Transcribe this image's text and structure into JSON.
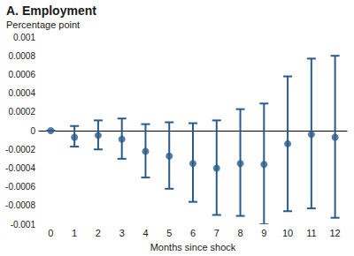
{
  "chart_data": {
    "type": "scatter",
    "title": "A. Employment",
    "y_label": "Percentage point",
    "x_label": "Months since shock",
    "categories": [
      "0",
      "1",
      "2",
      "3",
      "4",
      "5",
      "6",
      "7",
      "8",
      "9",
      "10",
      "11",
      "12"
    ],
    "values": [
      0,
      -7e-05,
      -5e-05,
      -9e-05,
      -0.00022,
      -0.00027,
      -0.00035,
      -0.0004,
      -0.00035,
      -0.00036,
      -0.00014,
      -4e-05,
      -7e-05
    ],
    "error_low": [
      0,
      -0.00017,
      -0.0002,
      -0.0003,
      -0.0005,
      -0.00062,
      -0.00076,
      -0.0009,
      -0.00091,
      -0.001,
      -0.00086,
      -0.00083,
      -0.00093
    ],
    "error_high": [
      0,
      5e-05,
      0.00011,
      0.00013,
      7e-05,
      9e-05,
      8e-05,
      0.00011,
      0.00023,
      0.00029,
      0.00058,
      0.00077,
      0.0008
    ],
    "color": "#2b5b8c",
    "marker": "circle",
    "ylim": [
      -0.001,
      0.001
    ],
    "yticks": [
      -0.001,
      -0.0008,
      -0.0006,
      -0.0004,
      -0.0002,
      0,
      0.0002,
      0.0004,
      0.0006,
      0.0008,
      0.001
    ],
    "grid": false
  }
}
